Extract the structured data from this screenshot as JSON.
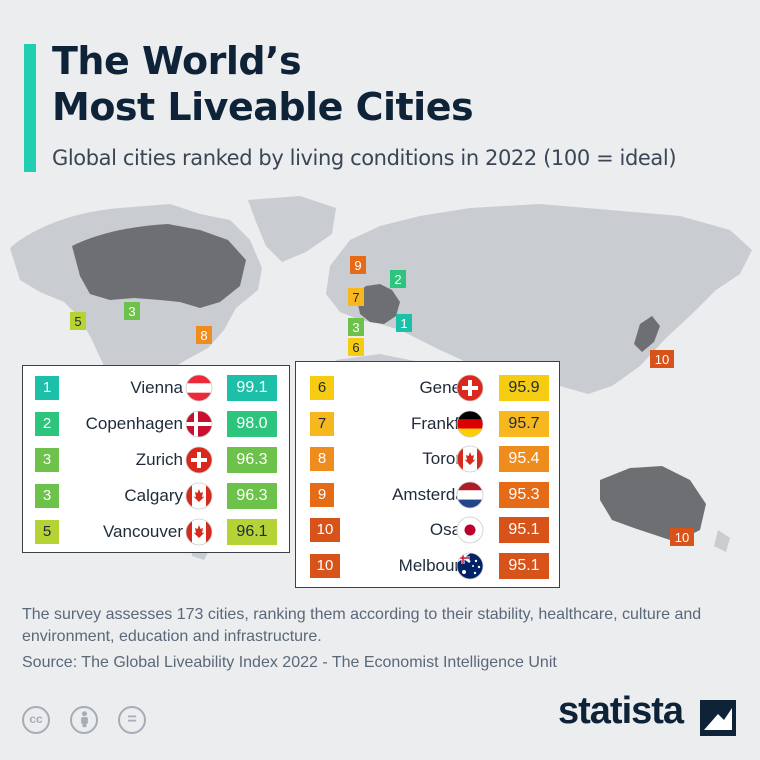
{
  "title_line1": "The World’s",
  "title_line2": "Most Liveable Cities",
  "subtitle": "Global cities ranked by living conditions in 2022 (100 = ideal)",
  "colors": {
    "accent": "#1fcfb0",
    "rank_1": "#1cc0a8",
    "rank_2": "#2dc57e",
    "rank_3": "#6cc24a",
    "rank_5": "#b5d334",
    "rank_6": "#f5cc12",
    "rank_7": "#f6b71f",
    "rank_8": "#ee8d1e",
    "rank_9": "#e56b17",
    "rank_10": "#d7531a",
    "map_land": "#c9ccd1",
    "map_highlight": "#6e6f73"
  },
  "chart_data": {
    "type": "table",
    "columns": [
      "rank",
      "city",
      "flag",
      "score"
    ],
    "rows": [
      {
        "rank": "1",
        "city": "Vienna",
        "flag": "austria-flag-icon",
        "score": "99.1"
      },
      {
        "rank": "2",
        "city": "Copenhagen",
        "flag": "denmark-flag-icon",
        "score": "98.0"
      },
      {
        "rank": "3",
        "city": "Zurich",
        "flag": "switzerland-flag-icon",
        "score": "96.3"
      },
      {
        "rank": "3",
        "city": "Calgary",
        "flag": "canada-flag-icon",
        "score": "96.3"
      },
      {
        "rank": "5",
        "city": "Vancouver",
        "flag": "canada-flag-icon",
        "score": "96.1"
      },
      {
        "rank": "6",
        "city": "Geneva",
        "flag": "switzerland-flag-icon",
        "score": "95.9"
      },
      {
        "rank": "7",
        "city": "Frankfurt",
        "flag": "germany-flag-icon",
        "score": "95.7"
      },
      {
        "rank": "8",
        "city": "Toronto",
        "flag": "canada-flag-icon",
        "score": "95.4"
      },
      {
        "rank": "9",
        "city": "Amsterdam",
        "flag": "netherlands-flag-icon",
        "score": "95.3"
      },
      {
        "rank": "10",
        "city": "Osaka",
        "flag": "japan-flag-icon",
        "score": "95.1"
      },
      {
        "rank": "10",
        "city": "Melbourne",
        "flag": "australia-flag-icon",
        "score": "95.1"
      }
    ],
    "map_markers": [
      "9",
      "2",
      "7",
      "3",
      "1",
      "6",
      "5",
      "3",
      "8",
      "10",
      "10"
    ]
  },
  "note": "The survey assesses 173 cities, ranking them according to their stability, healthcare, culture and environment, education and infrastructure.",
  "source": "Source: The Global Liveability Index 2022 - The Economist Intelligence Unit",
  "license_icons": [
    "cc-icon",
    "attribution-icon",
    "noderivs-icon"
  ],
  "cc_text": "cc",
  "noderivs_text": "=",
  "brand": "statista"
}
